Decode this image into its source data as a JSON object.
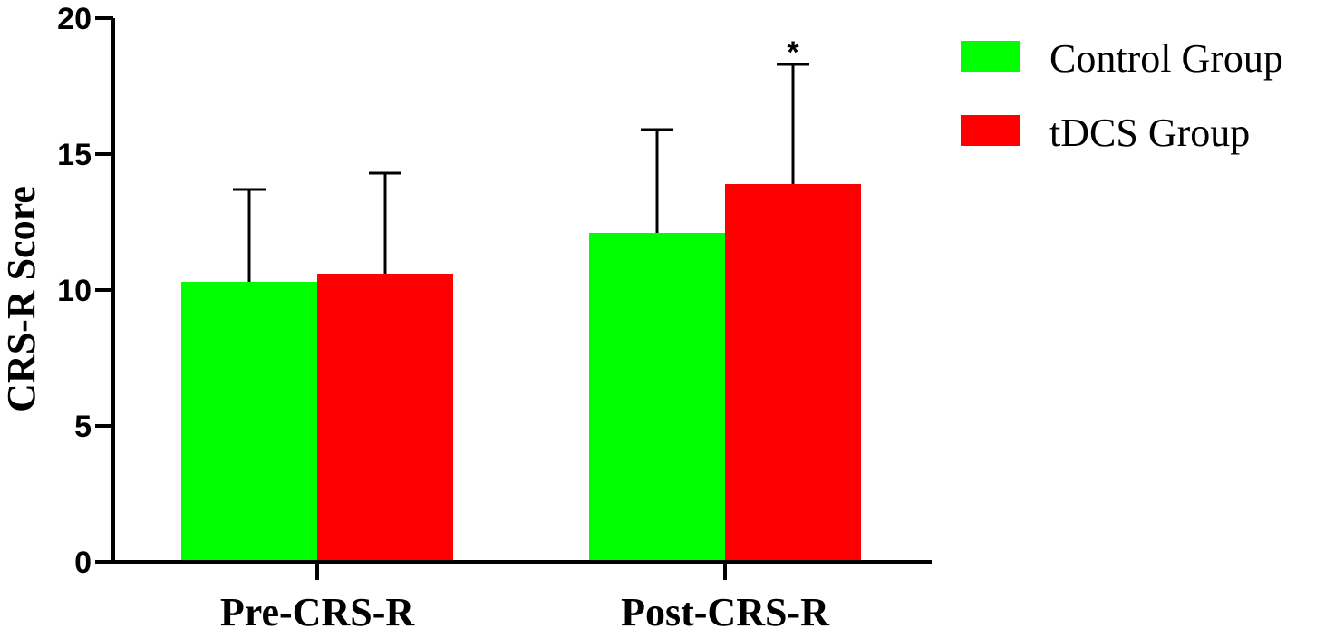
{
  "chart_data": {
    "type": "bar",
    "title": "",
    "xlabel": "",
    "ylabel": "CRS-R Score",
    "ylim": [
      0,
      20
    ],
    "yticks": [
      "0",
      "5",
      "10",
      "15",
      "20"
    ],
    "categories": [
      "Pre-CRS-R",
      "Post-CRS-R"
    ],
    "series": [
      {
        "name": "Control Group",
        "color": "#00ff00",
        "values": [
          10.3,
          12.1
        ],
        "error": [
          3.4,
          3.8
        ]
      },
      {
        "name": "tDCS Group",
        "color": "#ff0000",
        "values": [
          10.6,
          13.9
        ],
        "error": [
          3.7,
          4.4
        ]
      }
    ],
    "annotations": [
      {
        "text": "*",
        "category_index": 1,
        "series_index": 1
      }
    ],
    "legend": "right",
    "grid": false
  }
}
